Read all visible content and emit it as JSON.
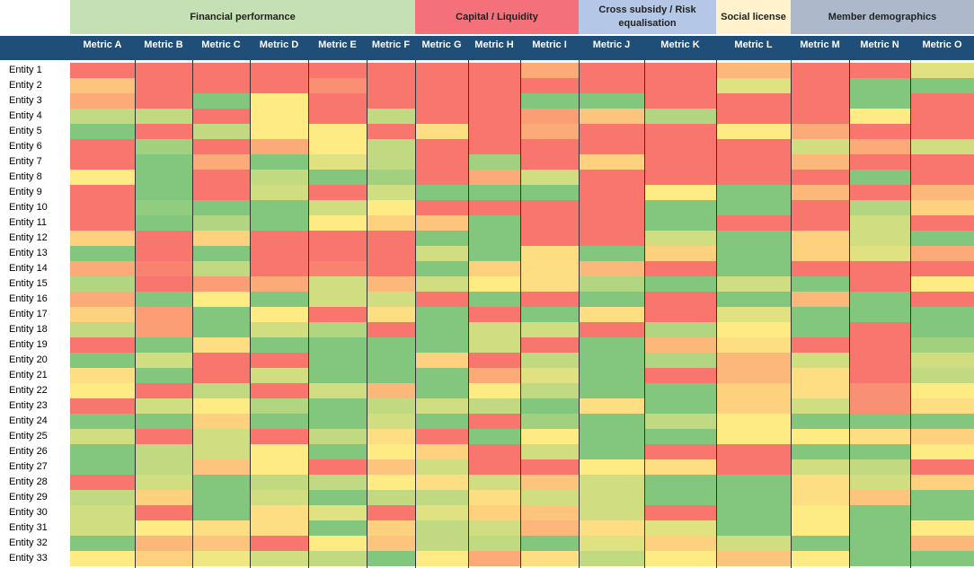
{
  "chart_data": {
    "type": "heatmap",
    "groups": [
      {
        "label": "Financial performance",
        "color": "#c5e0b4",
        "metrics": 6
      },
      {
        "label": "Capital / Liquidity",
        "color": "#f4707a",
        "metrics": 3
      },
      {
        "label": "Cross subsidy / Risk equalisation",
        "color": "#b4c7e7",
        "metrics": 2
      },
      {
        "label": "Social license",
        "color": "#fff2cc",
        "metrics": 1
      },
      {
        "label": "Member demographics",
        "color": "#adb9ca",
        "metrics": 3
      }
    ],
    "columns": [
      "Metric A",
      "Metric B",
      "Metric C",
      "Metric D",
      "Metric E",
      "Metric F",
      "Metric G",
      "Metric H",
      "Metric I",
      "Metric J",
      "Metric K",
      "Metric L",
      "Metric M",
      "Metric N",
      "Metric O"
    ],
    "rows": [
      "Entity 1",
      "Entity 2",
      "Entity 3",
      "Entity 4",
      "Entity 5",
      "Entity 6",
      "Entity 7",
      "Entity 8",
      "Entity 9",
      "Entity 10",
      "Entity 11",
      "Entity 12",
      "Entity 13",
      "Entity 14",
      "Entity 15",
      "Entity 16",
      "Entity 17",
      "Entity 18",
      "Entity 19",
      "Entity 20",
      "Entity 21",
      "Entity 22",
      "Entity 23",
      "Entity 24",
      "Entity 25",
      "Entity 26",
      "Entity 27",
      "Entity 28",
      "Entity 29",
      "Entity 30",
      "Entity 31",
      "Entity 32",
      "Entity 33"
    ],
    "scale": {
      "low": "red",
      "mid": "yellow",
      "high": "green",
      "min": 0,
      "max": 1
    },
    "values": [
      [
        0.05,
        0.05,
        0.05,
        0.05,
        0.05,
        0.05,
        0.05,
        0.05,
        0.25,
        0.05,
        0.05,
        0.3,
        0.05,
        0.05,
        0.6
      ],
      [
        0.35,
        0.05,
        0.05,
        0.05,
        0.15,
        0.05,
        0.05,
        0.05,
        0.05,
        0.05,
        0.05,
        0.6,
        0.05,
        0.9,
        0.9
      ],
      [
        0.25,
        0.05,
        0.9,
        0.5,
        0.05,
        0.05,
        0.05,
        0.05,
        0.9,
        0.9,
        0.05,
        0.05,
        0.05,
        0.9,
        0.05
      ],
      [
        0.7,
        0.7,
        0.05,
        0.5,
        0.05,
        0.7,
        0.05,
        0.05,
        0.2,
        0.35,
        0.75,
        0.05,
        0.05,
        0.5,
        0.05
      ],
      [
        0.9,
        0.05,
        0.7,
        0.5,
        0.5,
        0.05,
        0.45,
        0.05,
        0.25,
        0.05,
        0.05,
        0.5,
        0.25,
        0.05,
        0.05
      ],
      [
        0.05,
        0.8,
        0.05,
        0.25,
        0.5,
        0.7,
        0.05,
        0.05,
        0.05,
        0.05,
        0.05,
        0.05,
        0.65,
        0.25,
        0.65
      ],
      [
        0.05,
        0.9,
        0.25,
        0.9,
        0.6,
        0.7,
        0.05,
        0.8,
        0.05,
        0.4,
        0.05,
        0.05,
        0.3,
        0.05,
        0.05
      ],
      [
        0.5,
        0.9,
        0.05,
        0.7,
        0.9,
        0.8,
        0.05,
        0.25,
        0.65,
        0.05,
        0.05,
        0.05,
        0.05,
        0.9,
        0.05
      ],
      [
        0.05,
        0.9,
        0.05,
        0.65,
        0.05,
        0.65,
        0.9,
        0.9,
        0.9,
        0.05,
        0.5,
        0.9,
        0.3,
        0.05,
        0.3
      ],
      [
        0.05,
        0.85,
        0.9,
        0.9,
        0.65,
        0.5,
        0.05,
        0.05,
        0.05,
        0.05,
        0.9,
        0.9,
        0.05,
        0.75,
        0.4
      ],
      [
        0.05,
        0.9,
        0.75,
        0.9,
        0.5,
        0.4,
        0.35,
        0.9,
        0.05,
        0.05,
        0.9,
        0.05,
        0.05,
        0.65,
        0.05
      ],
      [
        0.4,
        0.05,
        0.4,
        0.05,
        0.05,
        0.05,
        0.9,
        0.9,
        0.05,
        0.05,
        0.65,
        0.9,
        0.4,
        0.65,
        0.9
      ],
      [
        0.9,
        0.05,
        0.9,
        0.05,
        0.05,
        0.05,
        0.65,
        0.9,
        0.45,
        0.9,
        0.4,
        0.9,
        0.4,
        0.6,
        0.25
      ],
      [
        0.25,
        0.1,
        0.7,
        0.05,
        0.1,
        0.05,
        0.9,
        0.4,
        0.45,
        0.3,
        0.05,
        0.9,
        0.05,
        0.05,
        0.05
      ],
      [
        0.75,
        0.05,
        0.2,
        0.25,
        0.65,
        0.3,
        0.65,
        0.5,
        0.45,
        0.75,
        0.9,
        0.65,
        0.9,
        0.05,
        0.5
      ],
      [
        0.25,
        0.9,
        0.5,
        0.9,
        0.65,
        0.65,
        0.05,
        0.9,
        0.05,
        0.9,
        0.05,
        0.9,
        0.3,
        0.9,
        0.05
      ],
      [
        0.4,
        0.2,
        0.9,
        0.5,
        0.05,
        0.45,
        0.9,
        0.05,
        0.9,
        0.45,
        0.05,
        0.6,
        0.9,
        0.9,
        0.9
      ],
      [
        0.7,
        0.2,
        0.9,
        0.65,
        0.75,
        0.05,
        0.9,
        0.65,
        0.65,
        0.05,
        0.75,
        0.5,
        0.9,
        0.05,
        0.9
      ],
      [
        0.05,
        0.9,
        0.45,
        0.9,
        0.9,
        0.9,
        0.9,
        0.65,
        0.05,
        0.9,
        0.3,
        0.45,
        0.05,
        0.05,
        0.8
      ],
      [
        0.9,
        0.65,
        0.05,
        0.05,
        0.9,
        0.9,
        0.4,
        0.05,
        0.7,
        0.9,
        0.75,
        0.3,
        0.65,
        0.05,
        0.65
      ],
      [
        0.45,
        0.9,
        0.05,
        0.65,
        0.9,
        0.9,
        0.9,
        0.25,
        0.6,
        0.9,
        0.05,
        0.3,
        0.45,
        0.05,
        0.7
      ],
      [
        0.5,
        0.05,
        0.7,
        0.05,
        0.65,
        0.3,
        0.9,
        0.5,
        0.7,
        0.9,
        0.9,
        0.4,
        0.45,
        0.15,
        0.5
      ],
      [
        0.05,
        0.65,
        0.5,
        0.75,
        0.9,
        0.7,
        0.65,
        0.7,
        0.9,
        0.45,
        0.9,
        0.4,
        0.65,
        0.15,
        0.45
      ],
      [
        0.9,
        0.9,
        0.4,
        0.9,
        0.9,
        0.65,
        0.9,
        0.05,
        0.8,
        0.9,
        0.7,
        0.5,
        0.9,
        0.9,
        0.9
      ],
      [
        0.65,
        0.05,
        0.65,
        0.05,
        0.7,
        0.45,
        0.05,
        0.9,
        0.5,
        0.9,
        0.9,
        0.5,
        0.5,
        0.45,
        0.4
      ],
      [
        0.9,
        0.7,
        0.65,
        0.5,
        0.9,
        0.5,
        0.4,
        0.05,
        0.65,
        0.9,
        0.05,
        0.05,
        0.9,
        0.9,
        0.5
      ],
      [
        0.9,
        0.7,
        0.35,
        0.5,
        0.05,
        0.35,
        0.65,
        0.05,
        0.05,
        0.5,
        0.45,
        0.05,
        0.65,
        0.7,
        0.05
      ],
      [
        0.05,
        0.65,
        0.9,
        0.7,
        0.7,
        0.5,
        0.45,
        0.65,
        0.35,
        0.65,
        0.9,
        0.9,
        0.45,
        0.65,
        0.4
      ],
      [
        0.7,
        0.4,
        0.9,
        0.65,
        0.9,
        0.7,
        0.7,
        0.45,
        0.65,
        0.65,
        0.9,
        0.9,
        0.45,
        0.35,
        0.9
      ],
      [
        0.65,
        0.05,
        0.9,
        0.45,
        0.6,
        0.05,
        0.6,
        0.4,
        0.35,
        0.65,
        0.05,
        0.9,
        0.5,
        0.9,
        0.9
      ],
      [
        0.65,
        0.5,
        0.45,
        0.45,
        0.9,
        0.4,
        0.7,
        0.65,
        0.3,
        0.45,
        0.6,
        0.9,
        0.5,
        0.9,
        0.5
      ],
      [
        0.9,
        0.3,
        0.35,
        0.05,
        0.5,
        0.35,
        0.7,
        0.7,
        0.9,
        0.6,
        0.4,
        0.65,
        0.9,
        0.9,
        0.3
      ],
      [
        0.5,
        0.4,
        0.55,
        0.65,
        0.7,
        0.9,
        0.5,
        0.25,
        0.45,
        0.7,
        0.5,
        0.35,
        0.5,
        0.9,
        0.9
      ]
    ]
  }
}
